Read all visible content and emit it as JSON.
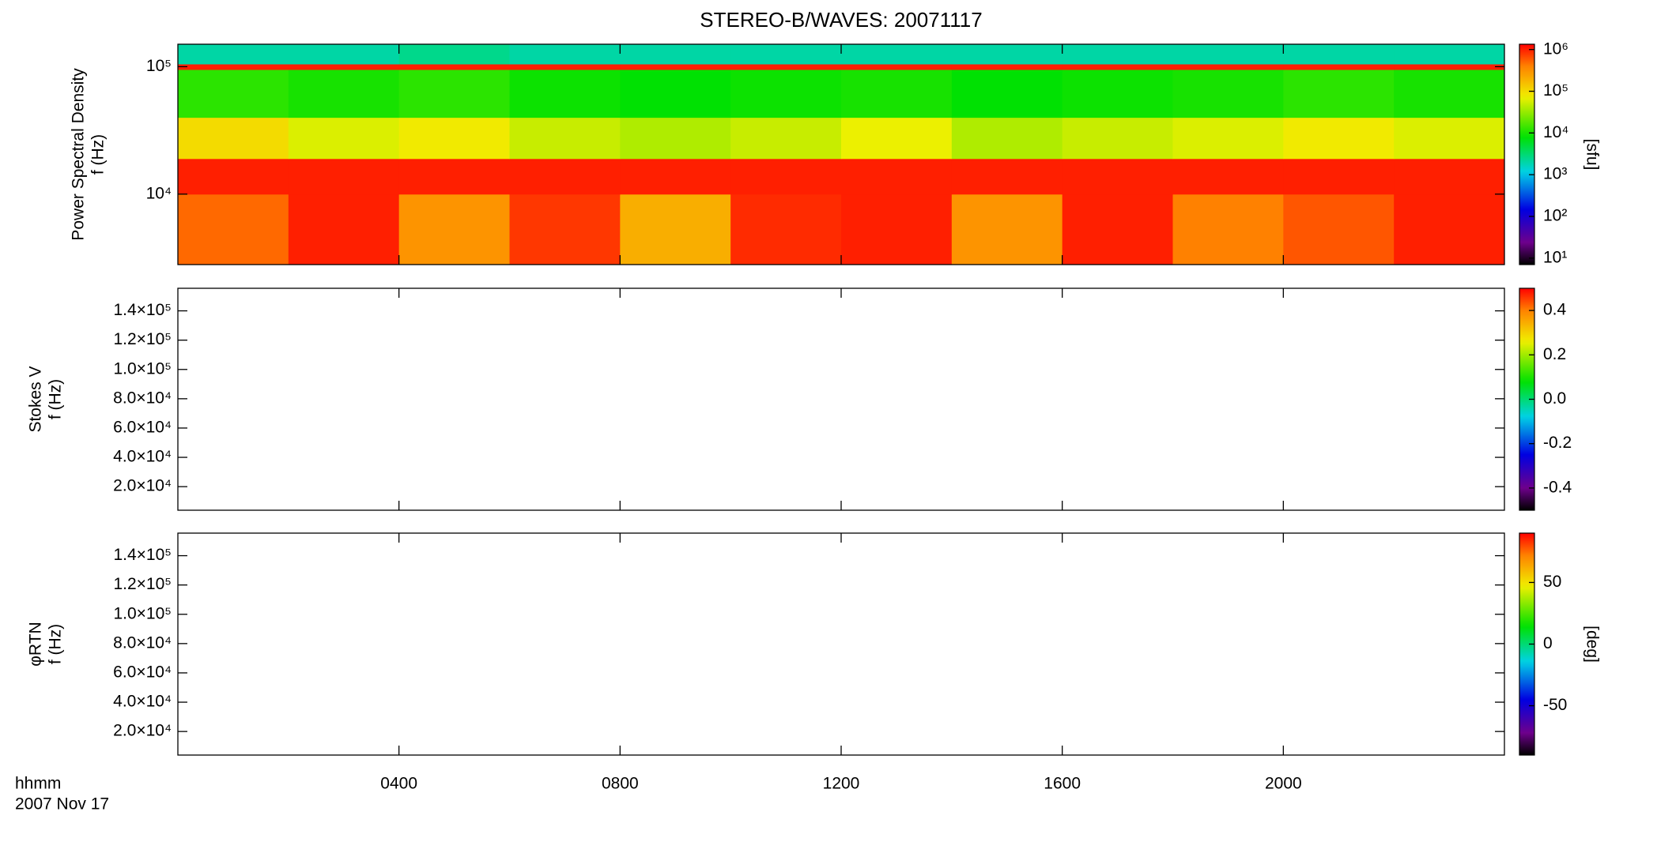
{
  "title": "STEREO-B/WAVES: 20071117",
  "time_axis": {
    "label": "hhmm",
    "date": "2007 Nov 17",
    "xlim": [
      0,
      24
    ],
    "xticks": [
      {
        "value": 4,
        "label": "0400"
      },
      {
        "value": 8,
        "label": "0800"
      },
      {
        "value": 12,
        "label": "1200"
      },
      {
        "value": 16,
        "label": "1600"
      },
      {
        "value": 20,
        "label": "2000"
      }
    ]
  },
  "chart_data": [
    {
      "type": "spectrogram",
      "ylabel": [
        "Power Spectral Density",
        "f (Hz)"
      ],
      "yscale": "log",
      "ylim": [
        2800,
        150000
      ],
      "yticks": [
        {
          "value": 10000,
          "label": "10⁴"
        },
        {
          "value": 100000,
          "label": "10⁵"
        }
      ],
      "time_bins": [
        0,
        2,
        4,
        6,
        8,
        10,
        12,
        14,
        16,
        18,
        20,
        22,
        24
      ],
      "freq_bins": [
        2800,
        10000,
        19000,
        40000,
        95000,
        105000,
        150000
      ],
      "values": [
        [
          500000,
          1000000,
          300000,
          800000,
          200000,
          900000,
          1000000,
          300000,
          1000000,
          400000,
          600000,
          1000000
        ],
        [
          1000000,
          1000000,
          1000000,
          1000000,
          1000000,
          1000000,
          1000000,
          1000000,
          1000000,
          1000000,
          1000000,
          1000000
        ],
        [
          100000,
          60000,
          80000,
          50000,
          40000,
          50000,
          70000,
          40000,
          50000,
          60000,
          80000,
          60000
        ],
        [
          12000,
          10000,
          12000,
          9000,
          8000,
          9000,
          10000,
          8000,
          9000,
          10000,
          12000,
          10000
        ],
        [
          1000000,
          1000000,
          1000000,
          1000000,
          1000000,
          1000000,
          1000000,
          1000000,
          1000000,
          1000000,
          1000000,
          1000000
        ],
        [
          2000,
          2000,
          2500,
          2000,
          2000,
          2000,
          2000,
          2000,
          2000,
          2000,
          2000,
          2000
        ]
      ],
      "colorbar": {
        "scale": "log",
        "lim": [
          7,
          1340000
        ],
        "ticks": [
          {
            "value": 10,
            "label": "10¹"
          },
          {
            "value": 100,
            "label": "10²"
          },
          {
            "value": 1000,
            "label": "10³"
          },
          {
            "value": 10000,
            "label": "10⁴"
          },
          {
            "value": 100000,
            "label": "10⁵"
          },
          {
            "value": 1000000,
            "label": "10⁶"
          }
        ],
        "label": "[sfu]"
      }
    },
    {
      "type": "spectrogram",
      "ylabel": [
        "Stokes V",
        "f (Hz)"
      ],
      "yscale": "linear",
      "ylim": [
        3900,
        155400
      ],
      "yticks": [
        {
          "value": 20000,
          "label": "2.0×10⁴"
        },
        {
          "value": 40000,
          "label": "4.0×10⁴"
        },
        {
          "value": 60000,
          "label": "6.0×10⁴"
        },
        {
          "value": 80000,
          "label": "8.0×10⁴"
        },
        {
          "value": 100000,
          "label": "1.0×10⁵"
        },
        {
          "value": 120000,
          "label": "1.2×10⁵"
        },
        {
          "value": 140000,
          "label": "1.4×10⁵"
        }
      ],
      "colorbar": {
        "scale": "linear",
        "lim": [
          -0.5,
          0.5
        ],
        "ticks": [
          -0.4,
          -0.2,
          {
            "value": 0,
            "label": "0.0"
          },
          0.2,
          0.4
        ]
      }
    },
    {
      "type": "spectrogram",
      "ylabel": [
        "φRTN",
        "f (Hz)"
      ],
      "yscale": "linear",
      "ylim": [
        3900,
        155400
      ],
      "yticks": [
        {
          "value": 20000,
          "label": "2.0×10⁴"
        },
        {
          "value": 40000,
          "label": "4.0×10⁴"
        },
        {
          "value": 60000,
          "label": "6.0×10⁴"
        },
        {
          "value": 80000,
          "label": "8.0×10⁴"
        },
        {
          "value": 100000,
          "label": "1.0×10⁵"
        },
        {
          "value": 120000,
          "label": "1.2×10⁵"
        },
        {
          "value": 140000,
          "label": "1.4×10⁵"
        }
      ],
      "colorbar": {
        "scale": "linear",
        "lim": [
          -90,
          90
        ],
        "ticks": [
          -50,
          0,
          50
        ],
        "label": "[deg]"
      }
    }
  ]
}
